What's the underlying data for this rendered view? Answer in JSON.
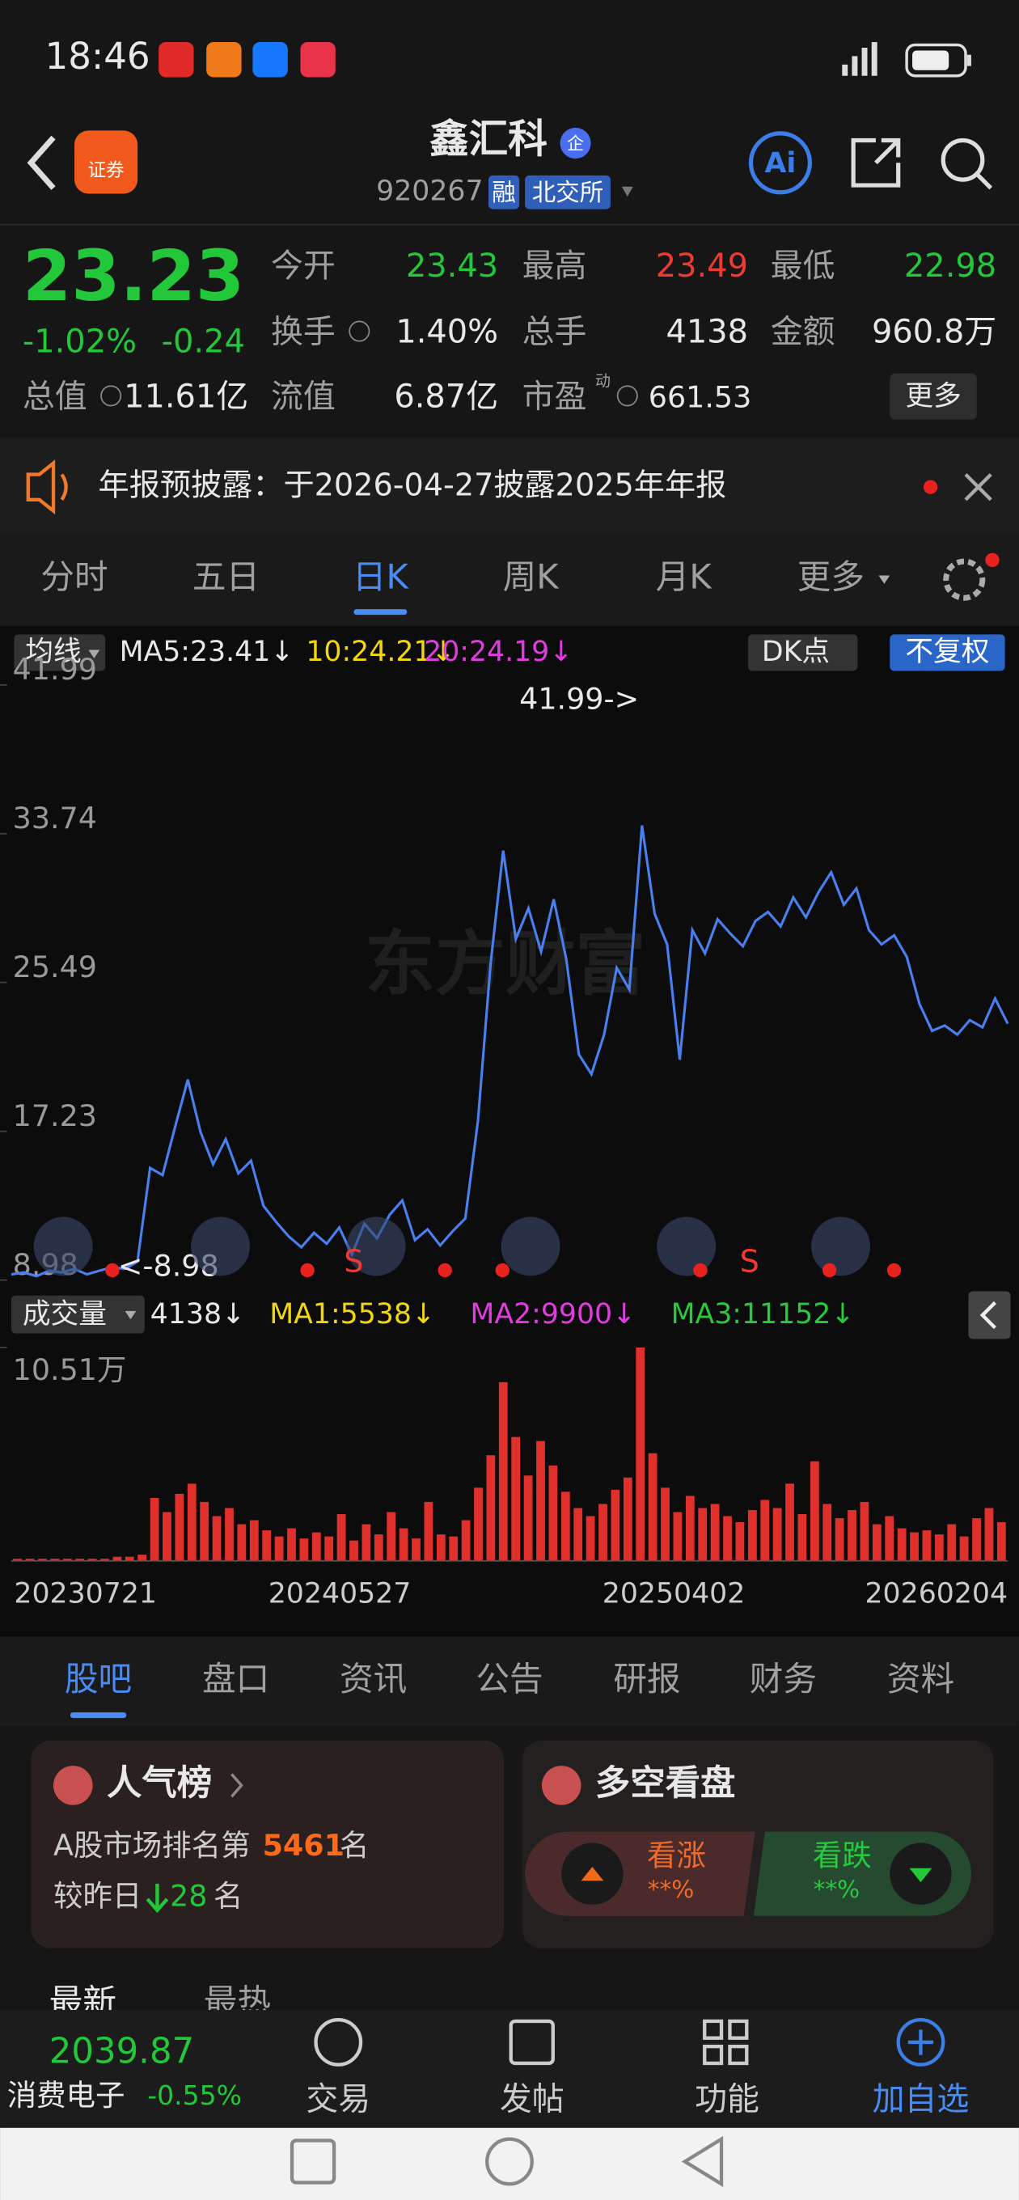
{
  "status_bar": {
    "time": "18:46"
  },
  "header": {
    "logo": "证券",
    "title": "鑫汇科",
    "badge": "企",
    "code": "920267",
    "tags": [
      "融",
      "北交所"
    ],
    "ai": "Ai"
  },
  "quote": {
    "price": "23.23",
    "change_pct": "-1.02%",
    "change": "-0.24",
    "fields": [
      {
        "label": "今开",
        "value": "23.43"
      },
      {
        "label": "最高",
        "value": "23.49"
      },
      {
        "label": "最低",
        "value": "22.98"
      },
      {
        "label": "换手",
        "value": "1.40%"
      },
      {
        "label": "总手",
        "value": "4138"
      },
      {
        "label": "金额",
        "value": "960.8万"
      },
      {
        "label": "总值",
        "value": "11.61亿"
      },
      {
        "label": "流值",
        "value": "6.87亿"
      },
      {
        "label": "市盈",
        "value": "661.53"
      }
    ],
    "pe_tag": "动",
    "more": "更多"
  },
  "notice": "年报预披露：于2026-04-27披露2025年年报",
  "tabs": [
    "分时",
    "五日",
    "日K",
    "周K",
    "月K",
    "更多"
  ],
  "ma_bar": {
    "button": "均线",
    "ma5": "MA5:23.41↓",
    "ma10": "10:24.21↓",
    "ma20": "20:24.19↓",
    "dk": "DK点",
    "adjust": "不复权"
  },
  "price_chart": {
    "type": "line",
    "color": "#4a7ff0",
    "ylim": [
      8.98,
      41.99
    ],
    "yticks": [
      41.99,
      33.74,
      25.49,
      17.23,
      8.98
    ],
    "max_label": "41.99->",
    "min_label": "<-8.98",
    "markers": [
      "S",
      "S"
    ],
    "watermark": "东方财富",
    "values": [
      9.3,
      9.4,
      9.2,
      9.5,
      9.4,
      9.6,
      9.3,
      9.5,
      9.7,
      9.6,
      10.0,
      15.2,
      14.8,
      17.5,
      20.1,
      17.2,
      15.4,
      16.8,
      14.9,
      15.6,
      13.1,
      12.2,
      11.4,
      10.8,
      11.6,
      11.0,
      11.9,
      10.4,
      12.1,
      11.3,
      12.6,
      13.4,
      11.2,
      11.8,
      10.9,
      11.7,
      12.4,
      17.8,
      26.5,
      32.8,
      27.9,
      29.6,
      27.2,
      30.1,
      26.8,
      21.5,
      20.4,
      22.6,
      26.3,
      25.1,
      34.2,
      29.3,
      27.6,
      21.2,
      28.4,
      27.1,
      29.0,
      28.2,
      27.5,
      28.9,
      29.4,
      28.6,
      30.2,
      29.1,
      30.5,
      31.6,
      29.8,
      30.7,
      28.4,
      27.6,
      28.1,
      26.9,
      24.3,
      22.8,
      23.1,
      22.6,
      23.4,
      23.0,
      24.6,
      23.2
    ]
  },
  "volume_bar": {
    "button": "成交量",
    "vol": "4138↓",
    "ma1": "MA1:5538↓",
    "ma2": "MA2:9900↓",
    "ma3": "MA3:11152↓"
  },
  "volume_chart": {
    "type": "bar",
    "color": "#e0302c",
    "ylim": [
      0,
      10.51
    ],
    "yticks": [
      {
        "value": 10.51,
        "label": "10.51万"
      }
    ],
    "values": [
      0.1,
      0.1,
      0.1,
      0.1,
      0.1,
      0.1,
      0.1,
      0.1,
      0.2,
      0.2,
      0.3,
      3.1,
      2.4,
      3.3,
      3.8,
      2.9,
      2.2,
      2.6,
      1.8,
      2.0,
      1.5,
      1.2,
      1.6,
      1.1,
      1.4,
      1.2,
      2.3,
      1.0,
      1.8,
      1.3,
      2.4,
      1.6,
      1.1,
      2.9,
      1.3,
      1.2,
      2.0,
      3.6,
      5.2,
      8.8,
      6.1,
      4.2,
      5.9,
      4.7,
      3.4,
      2.6,
      2.2,
      2.8,
      3.5,
      4.1,
      10.51,
      5.3,
      3.6,
      2.4,
      3.2,
      2.6,
      2.8,
      2.2,
      1.9,
      2.5,
      3.0,
      2.6,
      3.8,
      2.3,
      4.9,
      2.8,
      2.1,
      2.5,
      2.9,
      1.8,
      2.2,
      1.6,
      1.4,
      1.5,
      1.3,
      1.8,
      1.2,
      2.1,
      2.6,
      1.9
    ]
  },
  "x_labels": [
    "20230721",
    "20240527",
    "20250402",
    "20260204"
  ],
  "content_tabs": [
    "股吧",
    "盘口",
    "资讯",
    "公告",
    "研报",
    "财务",
    "资料"
  ],
  "popularity": {
    "title": "人气榜",
    "rank_prefix": "A股市场排名第",
    "rank": "5461",
    "rank_suffix": "名",
    "change_prefix": "较昨日",
    "change": "28",
    "change_suffix": "名"
  },
  "sentiment": {
    "title": "多空看盘",
    "up": "看涨",
    "up_pct": "**%",
    "down": "看跌",
    "down_pct": "**%"
  },
  "feed_tabs": [
    "最新",
    "最热"
  ],
  "bottom_bar": {
    "index_value": "2039.87",
    "index_name": "消费电子",
    "index_change": "-0.55%",
    "buttons": [
      "交易",
      "发帖",
      "功能",
      "加自选"
    ]
  }
}
